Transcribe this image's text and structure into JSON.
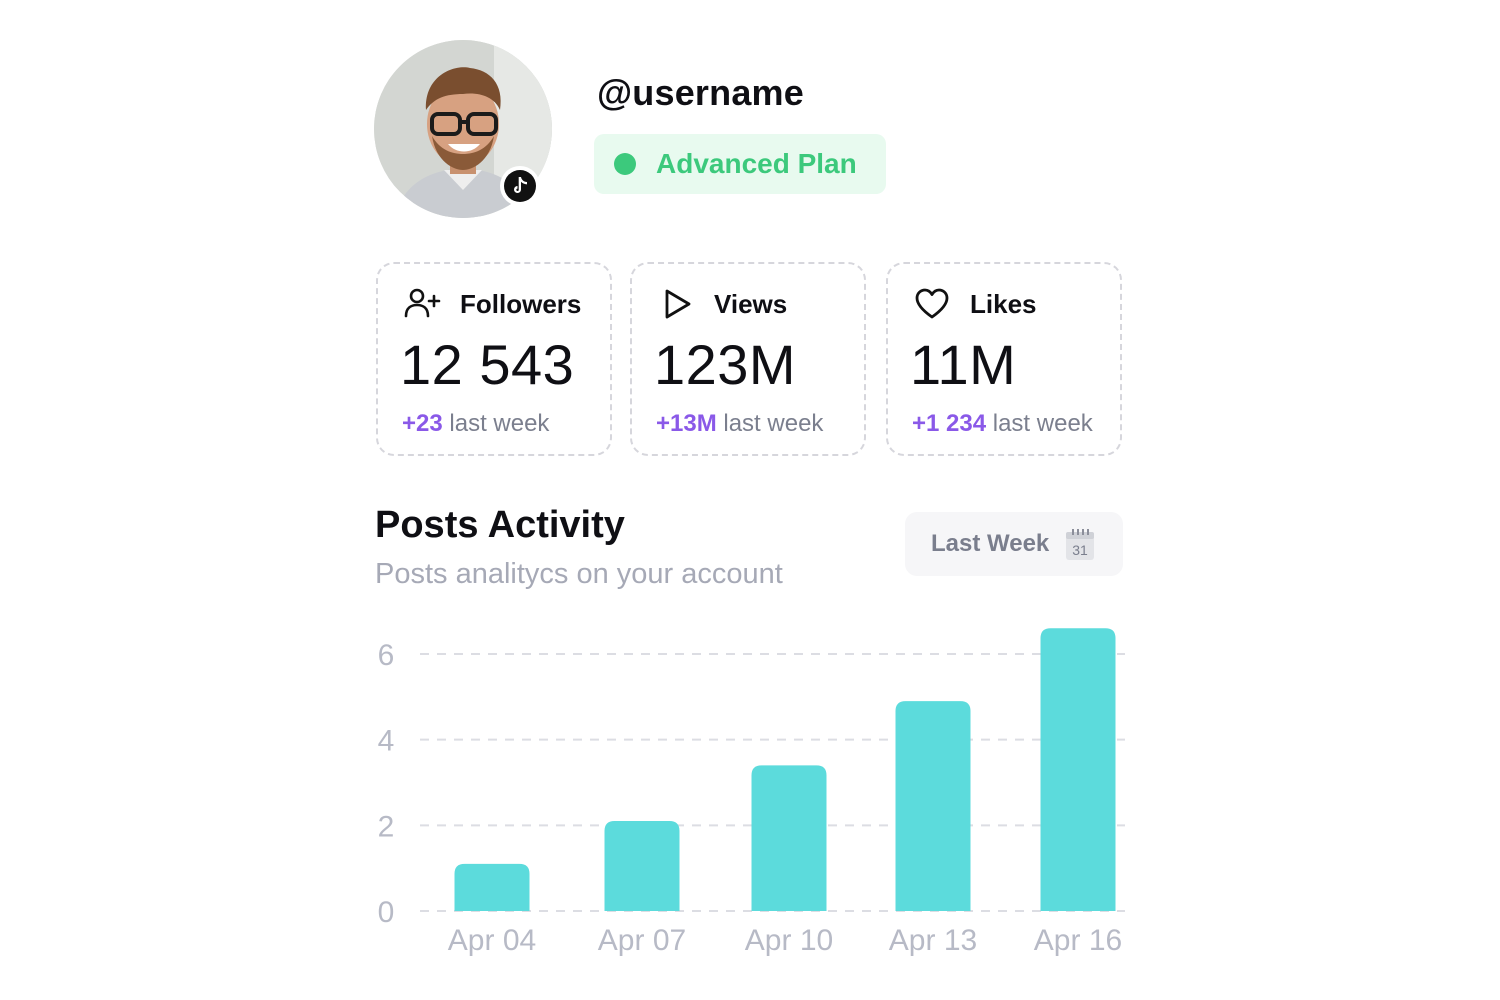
{
  "profile": {
    "username": "@username",
    "plan": "Advanced Plan",
    "platform_icon": "tiktok-icon",
    "avatar_icon": "avatar-photo"
  },
  "stats": [
    {
      "name": "Followers",
      "icon": "add-user-icon",
      "value": "12 543",
      "delta": "+23",
      "delta_suffix": "last week"
    },
    {
      "name": "Views",
      "icon": "play-icon",
      "value": "123M",
      "delta": "+13M",
      "delta_suffix": "last week"
    },
    {
      "name": "Likes",
      "icon": "heart-icon",
      "value": "11M",
      "delta": "+1 234",
      "delta_suffix": "last week"
    }
  ],
  "activity": {
    "title": "Posts Activity",
    "subtitle": "Posts analitycs on your account",
    "range_label": "Last Week",
    "calendar_day": "31"
  },
  "colors": {
    "accent_green": "#3cc97c",
    "delta_purple": "#8a59e8",
    "bar": "#5cdbdc"
  },
  "chart_data": {
    "type": "bar",
    "categories": [
      "Apr 04",
      "Apr 07",
      "Apr 10",
      "Apr 13",
      "Apr 16"
    ],
    "values": [
      1.1,
      2.1,
      3.4,
      4.9,
      6.6
    ],
    "yticks": [
      0,
      2,
      4,
      6
    ],
    "ylim": [
      0,
      6.6
    ],
    "grid": true
  }
}
